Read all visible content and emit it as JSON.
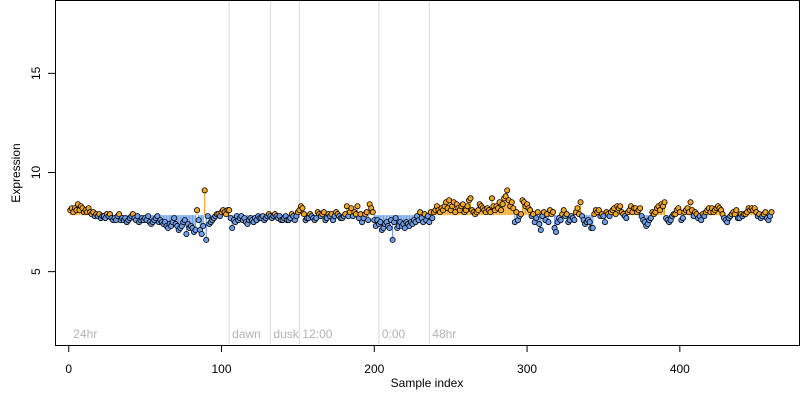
{
  "chart_data": {
    "type": "scatter",
    "title": "",
    "xlabel": "Sample index",
    "ylabel": "Expression",
    "xlim": [
      -9,
      478
    ],
    "ylim": [
      1.3,
      18.7
    ],
    "x_ticks": [
      0,
      100,
      200,
      300,
      400
    ],
    "y_ticks": [
      5,
      10,
      15
    ],
    "baseline": 7.85,
    "grid": false,
    "legend": "none",
    "colors": {
      "above_baseline": "#f5a623",
      "below_baseline": "#6d9eeb",
      "point_stroke": "#000000",
      "marker_line": "#d9d9d9",
      "annotation": "#b3b3b3"
    },
    "markers": [
      {
        "x": 1,
        "label": "24hr"
      },
      {
        "x": 105,
        "label": "dawn"
      },
      {
        "x": 132,
        "label": "dusk"
      },
      {
        "x": 151,
        "label": "12:00"
      },
      {
        "x": 203,
        "label": "0:00"
      },
      {
        "x": 236,
        "label": "48hr"
      }
    ],
    "series": [
      {
        "values": [
          8.1,
          8.2,
          8.0,
          8.2,
          8.1,
          8.4,
          8.1,
          8.3,
          8.2,
          8.0,
          8.1,
          8.0,
          8.2,
          8.0,
          7.9,
          8.0,
          7.8,
          7.9,
          7.8,
          7.9,
          7.7,
          7.8,
          7.8,
          7.7,
          7.9,
          7.8,
          7.9,
          7.7,
          7.6,
          7.7,
          7.6,
          7.8,
          7.9,
          7.6,
          7.7,
          7.6,
          7.7,
          7.5,
          7.6,
          7.7,
          7.8,
          7.9,
          7.7,
          7.6,
          7.8,
          7.5,
          7.6,
          7.7,
          7.6,
          7.7,
          7.6,
          7.8,
          7.5,
          7.4,
          7.5,
          7.6,
          7.7,
          7.8,
          7.5,
          7.6,
          7.5,
          7.4,
          7.5,
          7.3,
          7.2,
          7.4,
          7.3,
          7.5,
          7.7,
          7.4,
          7.3,
          7.1,
          7.2,
          7.3,
          7.5,
          7.6,
          6.9,
          7.4,
          7.2,
          7.3,
          7.2,
          7.0,
          7.1,
          8.1,
          7.6,
          7.1,
          6.9,
          7.3,
          9.1,
          6.6,
          7.8,
          7.4,
          7.5,
          7.6,
          7.7,
          7.8,
          7.9,
          7.9,
          7.8,
          8.0,
          8.1,
          8.0,
          7.9,
          8.1,
          8.1,
          7.7,
          7.2,
          7.6,
          7.5,
          7.8,
          7.6,
          7.7,
          7.8,
          7.6,
          7.7,
          7.5,
          7.4,
          7.6,
          7.7,
          7.6,
          7.5,
          7.7,
          7.6,
          7.8,
          7.7,
          7.7,
          7.8,
          7.6,
          7.7,
          7.8,
          7.9,
          7.8,
          7.7,
          7.8,
          7.9,
          7.8,
          7.7,
          7.8,
          7.6,
          7.6,
          7.7,
          7.8,
          7.6,
          7.6,
          7.7,
          7.9,
          7.8,
          7.6,
          7.8,
          8.0,
          8.1,
          8.3,
          8.2,
          7.9,
          7.6,
          7.7,
          7.7,
          7.9,
          7.8,
          7.7,
          7.6,
          7.7,
          8.0,
          7.9,
          7.8,
          7.9,
          8.0,
          7.6,
          7.7,
          7.9,
          7.8,
          7.9,
          7.6,
          7.8,
          8.0,
          7.9,
          7.8,
          7.7,
          7.7,
          7.8,
          7.9,
          8.3,
          7.8,
          8.0,
          8.2,
          7.8,
          8.0,
          7.9,
          8.3,
          7.7,
          7.9,
          7.5,
          7.7,
          7.9,
          8.0,
          7.6,
          8.4,
          8.2,
          8.0,
          7.6,
          7.3,
          7.6,
          7.4,
          7.5,
          7.1,
          7.2,
          7.4,
          7.5,
          7.3,
          7.2,
          7.6,
          6.6,
          7.5,
          7.7,
          7.2,
          7.3,
          7.5,
          7.3,
          7.4,
          7.2,
          7.5,
          7.4,
          7.3,
          7.5,
          7.4,
          7.6,
          7.5,
          7.8,
          7.6,
          8.0,
          7.7,
          7.5,
          7.9,
          7.6,
          7.8,
          7.5,
          8.0,
          7.7,
          8.0,
          8.1,
          8.3,
          8.1,
          8.0,
          8.2,
          8.1,
          8.3,
          8.5,
          8.2,
          8.6,
          8.1,
          8.3,
          8.5,
          8.0,
          8.4,
          8.2,
          8.1,
          8.3,
          8.4,
          8.0,
          8.1,
          8.3,
          8.6,
          8.7,
          8.1,
          8.0,
          7.9,
          8.0,
          8.1,
          8.4,
          8.3,
          8.2,
          8.1,
          8.0,
          8.2,
          8.1,
          8.0,
          8.7,
          8.3,
          8.1,
          8.3,
          8.2,
          8.5,
          8.1,
          8.4,
          8.7,
          8.8,
          9.1,
          8.6,
          8.3,
          8.5,
          8.2,
          7.5,
          8.0,
          7.6,
          7.8,
          7.9,
          8.6,
          8.5,
          8.3,
          8.4,
          8.2,
          8.1,
          7.8,
          7.9,
          7.5,
          7.7,
          8.0,
          7.4,
          7.1,
          7.8,
          8.0,
          7.6,
          7.9,
          7.5,
          8.1,
          7.9,
          8.0,
          7.2,
          7.0,
          7.5,
          7.7,
          7.6,
          7.9,
          8.1,
          7.8,
          7.9,
          7.5,
          7.6,
          7.8,
          7.7,
          7.6,
          8.0,
          8.2,
          7.9,
          8.5,
          7.8,
          7.6,
          7.4,
          7.5,
          7.6,
          7.5,
          7.2,
          7.2,
          7.9,
          8.1,
          8.0,
          8.1,
          7.8,
          7.9,
          7.8,
          7.5,
          8.0,
          7.9,
          7.8,
          8.0,
          8.1,
          8.2,
          7.9,
          8.3,
          8.2,
          8.3,
          8.0,
          7.9,
          7.8,
          7.7,
          8.0,
          8.1,
          8.3,
          8.0,
          8.2,
          8.2,
          8.0,
          8.1,
          8.2,
          7.8,
          7.6,
          7.5,
          7.3,
          7.4,
          7.6,
          7.7,
          8.0,
          7.9,
          8.0,
          8.2,
          8.3,
          8.1,
          8.4,
          8.3,
          8.5,
          7.7,
          7.6,
          7.5,
          7.6,
          7.8,
          7.9,
          7.9,
          8.1,
          8.2,
          8.0,
          7.6,
          7.7,
          8.0,
          8.1,
          8.2,
          8.0,
          8.5,
          8.1,
          7.8,
          8.0,
          7.9,
          7.7,
          7.8,
          7.6,
          7.9,
          7.8,
          8.0,
          8.1,
          8.2,
          8.0,
          8.2,
          8.0,
          8.1,
          8.2,
          8.3,
          8.2,
          8.1,
          7.9,
          7.7,
          7.6,
          7.5,
          7.7,
          7.8,
          7.9,
          8.0,
          7.9,
          8.1,
          7.7,
          7.7,
          7.9,
          7.8,
          7.9,
          7.9,
          8.0,
          8.2,
          8.1,
          8.2,
          8.1,
          8.2,
          8.0,
          7.8,
          7.9,
          7.7,
          7.8,
          7.9,
          8.0,
          7.7,
          7.6,
          7.8,
          8.0
        ]
      }
    ]
  }
}
